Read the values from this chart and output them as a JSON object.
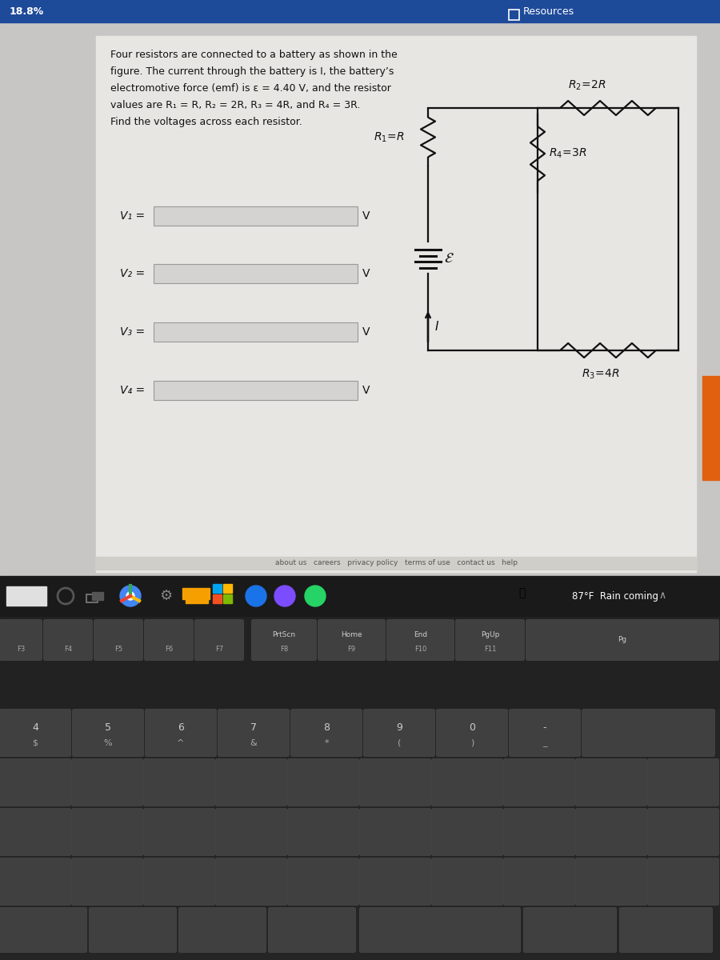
{
  "top_bar_pct": "18.8%",
  "resources_label": "Resources",
  "problem_lines": [
    "Four resistors are connected to a battery as shown in the",
    "figure. The current through the battery is I, the battery’s",
    "electromotive force (emf) is ε = 4.40 V, and the resistor",
    "values are R₁ = R, R₂ = 2R, R₃ = 4R, and R₄ = 3R.",
    "Find the voltages across each resistor."
  ],
  "input_labels": [
    "V₁ =",
    "V₂ =",
    "V₃ =",
    "V₄ ="
  ],
  "footer": "about us   careers   privacy policy   terms of use   contact us   help",
  "weather": "87°F  Rain coming",
  "colors": {
    "outer_bg": "#b5b5b5",
    "inner_bg": "#c8c6c4",
    "content_bg": "#e8e6e3",
    "top_bar": "#1e4a9a",
    "taskbar": "#1a1a1a",
    "keyboard_bg": "#2d2d2d",
    "key_bg": "#3c3c3c",
    "orange_tab": "#e06010",
    "wire": "#000000",
    "input_box": "#d5d3d1",
    "footer_bg": "#d0cec8"
  }
}
